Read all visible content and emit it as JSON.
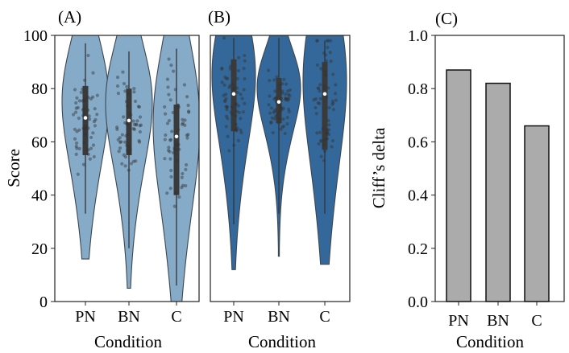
{
  "chart_data": [
    {
      "panel": "(A)",
      "type": "violin",
      "ylabel": "Score",
      "xlabel": "Condition",
      "ylim": [
        0,
        100
      ],
      "yticks": [
        0,
        20,
        40,
        60,
        80,
        100
      ],
      "categories": [
        "PN",
        "BN",
        "C"
      ],
      "fill_color": "#86abc9",
      "series": [
        {
          "name": "PN",
          "median": 69,
          "q1": 55,
          "q3": 81,
          "min": 16,
          "max": 100,
          "whisker_low": 33,
          "whisker_high": 97
        },
        {
          "name": "BN",
          "median": 68,
          "q1": 55,
          "q3": 80,
          "min": 5,
          "max": 100,
          "whisker_low": 20,
          "whisker_high": 94
        },
        {
          "name": "C",
          "median": 62,
          "q1": 40,
          "q3": 74,
          "min": 0,
          "max": 100,
          "whisker_low": 6,
          "whisker_high": 95
        }
      ]
    },
    {
      "panel": "(B)",
      "type": "violin",
      "ylabel": "",
      "xlabel": "Condition",
      "ylim": [
        0,
        100
      ],
      "categories": [
        "PN",
        "BN",
        "C"
      ],
      "fill_color": "#34689a",
      "series": [
        {
          "name": "PN",
          "median": 78,
          "q1": 64,
          "q3": 91,
          "min": 12,
          "max": 100,
          "whisker_low": 29,
          "whisker_high": 99
        },
        {
          "name": "BN",
          "median": 75,
          "q1": 67,
          "q3": 84,
          "min": 17,
          "max": 100,
          "whisker_low": 33,
          "whisker_high": 99
        },
        {
          "name": "C",
          "median": 78,
          "q1": 57,
          "q3": 90,
          "min": 14,
          "max": 100,
          "whisker_low": 33,
          "whisker_high": 98
        }
      ]
    },
    {
      "panel": "(C)",
      "type": "bar",
      "ylabel": "Cliff’s delta",
      "xlabel": "Condition",
      "ylim": [
        0,
        1.0
      ],
      "yticks": [
        "0.0",
        "0.2",
        "0.4",
        "0.6",
        "0.8",
        "1.0"
      ],
      "categories": [
        "PN",
        "BN",
        "C"
      ],
      "values": [
        0.87,
        0.82,
        0.66
      ],
      "bar_color": "#ababab"
    }
  ]
}
